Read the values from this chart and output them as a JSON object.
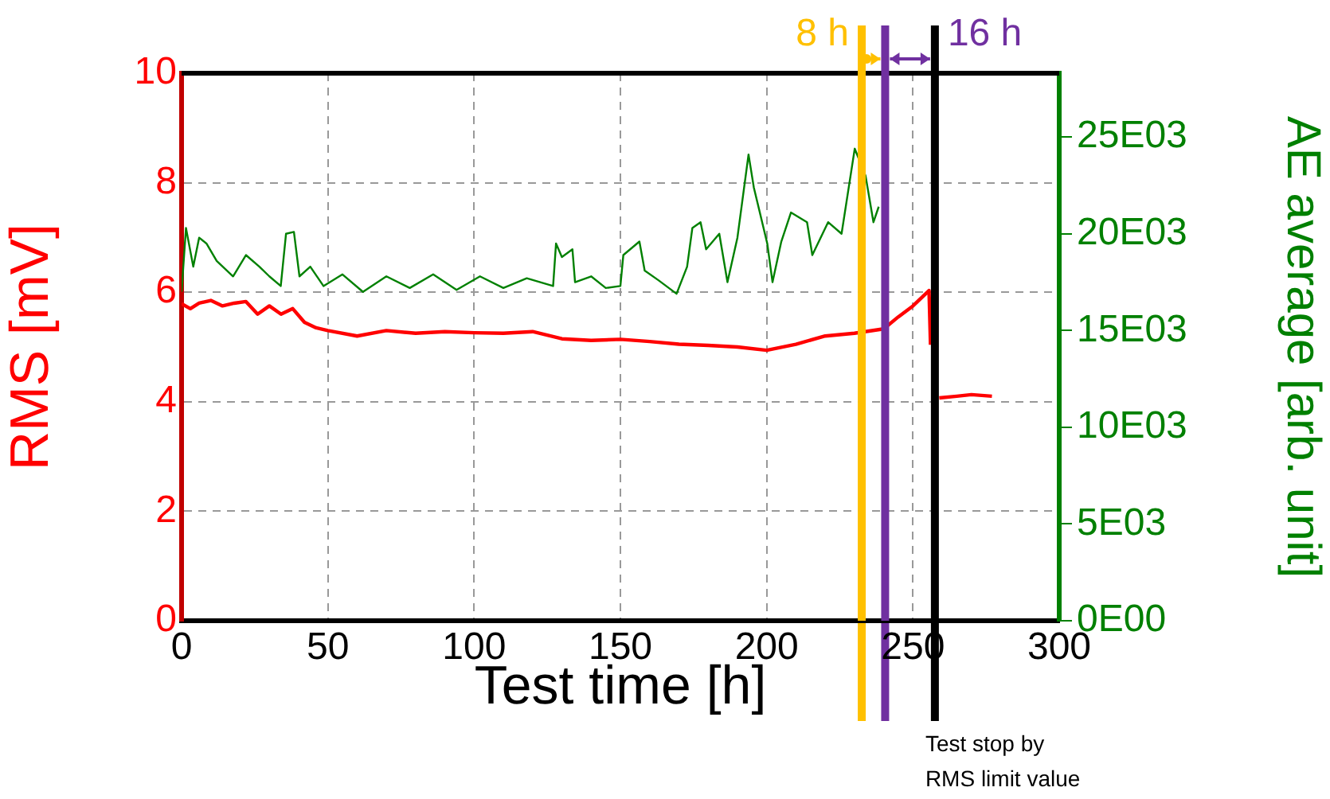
{
  "chart_data": {
    "type": "line",
    "xlabel": "Test time [h]",
    "ylabel": "RMS [mV]",
    "y2label": "AE average [arb. unit]",
    "xlim": [
      0,
      300
    ],
    "xticks": [
      0,
      50,
      100,
      150,
      200,
      250,
      300
    ],
    "ylim": [
      0,
      10
    ],
    "yticks": [
      0,
      2,
      4,
      6,
      8,
      10
    ],
    "y2lim": [
      0,
      28300
    ],
    "y2ticks": [
      {
        "value": 0,
        "label": "0E00"
      },
      {
        "value": 5000,
        "label": "5E03"
      },
      {
        "value": 10000,
        "label": "10E03"
      },
      {
        "value": 15000,
        "label": "15E03"
      },
      {
        "value": 20000,
        "label": "20E03"
      },
      {
        "value": 25000,
        "label": "25E03"
      }
    ],
    "grid": true,
    "legend": false,
    "marker": "none",
    "line_style": "solid",
    "series": [
      {
        "color": "#ff0000",
        "axis": "y",
        "x": [
          0,
          3,
          6,
          10,
          14,
          18,
          22,
          26,
          30,
          34,
          38,
          42,
          46,
          50,
          60,
          70,
          80,
          90,
          100,
          110,
          120,
          130,
          140,
          150,
          160,
          170,
          180,
          190,
          200,
          210,
          220,
          230,
          240,
          245,
          250,
          255.5,
          256,
          257,
          259,
          265,
          270,
          277
        ],
        "values": [
          5.79,
          5.7,
          5.8,
          5.85,
          5.75,
          5.8,
          5.83,
          5.6,
          5.75,
          5.6,
          5.7,
          5.45,
          5.35,
          5.3,
          5.2,
          5.3,
          5.25,
          5.28,
          5.26,
          5.25,
          5.28,
          5.15,
          5.12,
          5.14,
          5.1,
          5.05,
          5.03,
          5.0,
          4.94,
          5.05,
          5.2,
          5.25,
          5.33,
          5.55,
          5.75,
          6.03,
          5.04,
          null,
          4.07,
          4.1,
          4.13,
          4.1
        ]
      },
      {
        "color": "#008000",
        "axis": "y2",
        "x": [
          0,
          1.5,
          4,
          6,
          8.5,
          12,
          17.6,
          22,
          26.6,
          30,
          33.9,
          35.7,
          38.4,
          40.3,
          44,
          48.5,
          55,
          62,
          70,
          78,
          86,
          94,
          102,
          110,
          118,
          127,
          128,
          130,
          133.6,
          134.5,
          140,
          145,
          150,
          151,
          156.5,
          158.3,
          163,
          169.2,
          172.8,
          174.6,
          177.4,
          179.3,
          183.8,
          186.6,
          190,
          193.8,
          195.6,
          200.2,
          202,
          205,
          208.3,
          213.8,
          215.6,
          221,
          225.6,
          230.1,
          233.8,
          236.5,
          238.3
        ],
        "values": [
          17000,
          20300,
          18300,
          19800,
          19500,
          18600,
          17800,
          18900,
          18300,
          17800,
          17300,
          20000,
          20100,
          17800,
          18300,
          17300,
          17900,
          17000,
          17800,
          17200,
          17900,
          17100,
          17800,
          17200,
          17700,
          17300,
          19500,
          18800,
          19200,
          17500,
          17800,
          17200,
          17300,
          18900,
          19600,
          18100,
          17600,
          16900,
          18300,
          20300,
          20600,
          19200,
          20000,
          17500,
          19800,
          24100,
          22400,
          19500,
          17500,
          19600,
          21100,
          20600,
          18900,
          20600,
          20000,
          24400,
          23000,
          20600,
          21400
        ]
      }
    ],
    "ref_lines": [
      {
        "axis": "x",
        "value": 232.5,
        "label": "8 h",
        "color": "#ffc000"
      },
      {
        "axis": "x",
        "value": 240.5,
        "label": "16 h",
        "color": "#7030a0"
      },
      {
        "axis": "x",
        "value": 257.5,
        "label": "Test stop by\nRMS limit value",
        "color": "#000000"
      }
    ]
  }
}
